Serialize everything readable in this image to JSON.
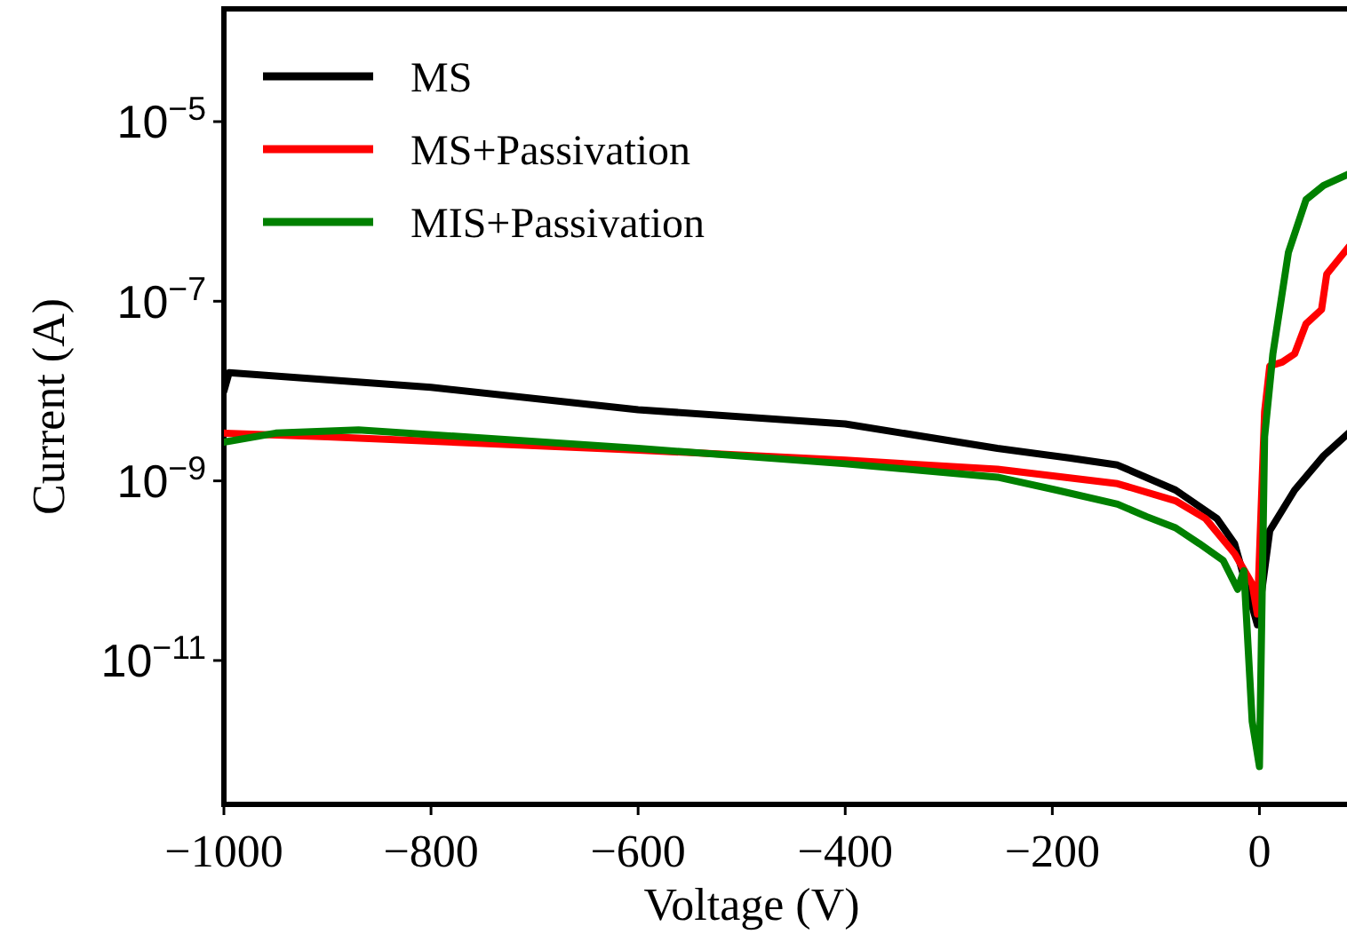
{
  "chart_data": {
    "type": "line",
    "xlabel": "Voltage (V)",
    "ylabel": "Current (A)",
    "log": "y",
    "legend": "top left",
    "grid": false,
    "marker": "none",
    "line_style": "solid",
    "xlim": [
      -1000,
      88
    ],
    "ylim": [
      2.5e-13,
      0.00018
    ],
    "xticks": [
      {
        "value": -1000,
        "label": "−1000"
      },
      {
        "value": -800,
        "label": "−800"
      },
      {
        "value": -600,
        "label": "−600"
      },
      {
        "value": -400,
        "label": "−400"
      },
      {
        "value": -200,
        "label": "−200"
      },
      0
    ],
    "yticks": [
      {
        "value": 1e-05,
        "label": "10$^{−5}$"
      },
      {
        "value": 1e-07,
        "label": "10$^{−7}$"
      },
      {
        "value": 1e-09,
        "label": "10$^{−9}$"
      },
      {
        "value": 1e-11,
        "label": "10$^{−11}$"
      }
    ],
    "series": [
      {
        "name": "MS",
        "color": "#000000",
        "x": [
          -1000,
          -995,
          -800,
          -600,
          -400,
          -253,
          -184,
          -137,
          -81,
          -41,
          -24,
          -2,
          10,
          34,
          62,
          86
        ],
        "values": [
          1e-08,
          1.6e-08,
          1.1e-08,
          6.2e-09,
          4.3e-09,
          2.3e-09,
          1.8e-09,
          1.5e-09,
          7.9e-10,
          3.8e-10,
          2e-10,
          2.5e-11,
          2.8e-10,
          7.9e-10,
          1.9e-09,
          3.4e-09
        ]
      },
      {
        "name": "MS+Passivation",
        "color": "#ff0000",
        "x": [
          -1000,
          -900,
          -600,
          -400,
          -253,
          -137,
          -81,
          -52,
          -24,
          -7,
          -2,
          5,
          10,
          22,
          34,
          45,
          60,
          65,
          86
        ],
        "values": [
          3.4e-09,
          3.1e-09,
          2.2e-09,
          1.7e-09,
          1.35e-09,
          9.3e-10,
          6e-10,
          3.8e-10,
          1.55e-10,
          7.1e-11,
          3.3e-11,
          5.9e-09,
          1.9e-08,
          2.1e-08,
          2.6e-08,
          5.6e-08,
          8.1e-08,
          2e-07,
          4e-07
        ]
      },
      {
        "name": "MIS+Passivation",
        "color": "#008000",
        "x": [
          -1000,
          -950,
          -870,
          -600,
          -400,
          -253,
          -196,
          -137,
          -109,
          -81,
          -58,
          -35,
          -21,
          -15,
          -7,
          0,
          5,
          13,
          28,
          45,
          62,
          86
        ],
        "values": [
          2.7e-09,
          3.4e-09,
          3.7e-09,
          2.3e-09,
          1.55e-09,
          1.1e-09,
          7.9e-10,
          5.5e-10,
          4e-10,
          3e-10,
          2e-10,
          1.3e-10,
          6.2e-11,
          1e-10,
          2.1e-12,
          6.6e-13,
          3.1e-09,
          2.6e-08,
          3.5e-07,
          1.35e-06,
          1.95e-06,
          2.6e-06
        ]
      }
    ]
  }
}
